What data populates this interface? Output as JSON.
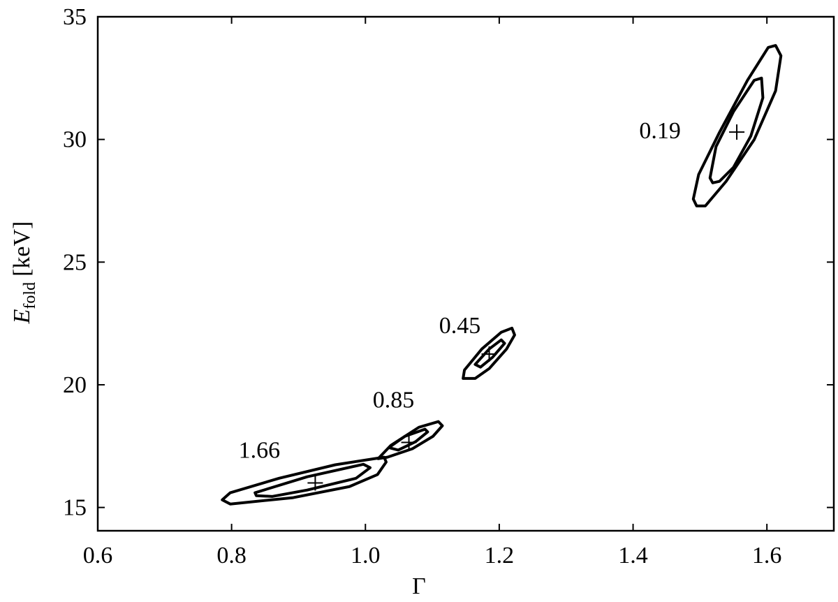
{
  "chart_data": {
    "type": "contour",
    "xlabel": "Γ",
    "ylabel": {
      "symbol": "E",
      "subscript": "fold",
      "unit": "[keV]"
    },
    "xlim": [
      0.6,
      1.7
    ],
    "ylim": [
      14.05,
      35
    ],
    "xticks": [
      0.6,
      0.8,
      {
        "value": 1.0,
        "label": "1.0"
      },
      1.2,
      1.4,
      1.6
    ],
    "yticks": [
      15,
      20,
      25,
      30,
      35
    ],
    "color": "#000000",
    "groups": [
      {
        "label": "1.66",
        "best_x": 0.925,
        "best_y": 16.0,
        "contours": [
          {
            "x": [
              0.786,
              0.798,
              0.871,
              0.955,
              1.028,
              1.031,
              1.018,
              0.976,
              0.892,
              0.798
            ],
            "y": [
              15.31,
              15.6,
              16.19,
              16.74,
              17.05,
              16.85,
              16.34,
              15.85,
              15.4,
              15.14
            ]
          },
          {
            "x": [
              0.835,
              0.913,
              0.997,
              1.007,
              0.986,
              0.913,
              0.861,
              0.837
            ],
            "y": [
              15.6,
              16.25,
              16.76,
              16.62,
              16.19,
              15.71,
              15.45,
              15.48
            ]
          }
        ]
      },
      {
        "label": "0.85",
        "best_x": 1.065,
        "best_y": 17.65,
        "contours": [
          {
            "x": [
              1.019,
              1.038,
              1.08,
              1.109,
              1.115,
              1.101,
              1.07,
              1.033
            ],
            "y": [
              16.99,
              17.53,
              18.27,
              18.5,
              18.33,
              17.9,
              17.39,
              17.05
            ]
          },
          {
            "x": [
              1.035,
              1.059,
              1.089,
              1.093,
              1.075,
              1.049
            ],
            "y": [
              17.44,
              17.9,
              18.19,
              18.08,
              17.68,
              17.34
            ]
          }
        ]
      },
      {
        "label": "0.45",
        "best_x": 1.185,
        "best_y": 21.25,
        "contours": [
          {
            "x": [
              1.146,
              1.148,
              1.174,
              1.203,
              1.219,
              1.223,
              1.211,
              1.185,
              1.164
            ],
            "y": [
              20.26,
              20.6,
              21.46,
              22.14,
              22.31,
              22.03,
              21.46,
              20.66,
              20.26
            ]
          },
          {
            "x": [
              1.164,
              1.185,
              1.203,
              1.208,
              1.19,
              1.172
            ],
            "y": [
              20.83,
              21.46,
              21.83,
              21.69,
              21.12,
              20.72
            ]
          }
        ]
      },
      {
        "label": "0.19",
        "best_x": 1.555,
        "best_y": 30.3,
        "contours": [
          {
            "x": [
              1.49,
              1.498,
              1.529,
              1.571,
              1.602,
              1.613,
              1.621,
              1.613,
              1.581,
              1.539,
              1.508,
              1.495
            ],
            "y": [
              27.57,
              28.57,
              30.28,
              32.41,
              33.75,
              33.83,
              33.41,
              31.98,
              29.99,
              28.29,
              27.29,
              27.29
            ]
          },
          {
            "x": [
              1.515,
              1.524,
              1.55,
              1.581,
              1.592,
              1.594,
              1.576,
              1.55,
              1.529,
              1.519
            ],
            "y": [
              28.43,
              29.71,
              31.13,
              32.41,
              32.5,
              31.7,
              30.14,
              28.86,
              28.29,
              28.23
            ]
          }
        ]
      }
    ]
  }
}
